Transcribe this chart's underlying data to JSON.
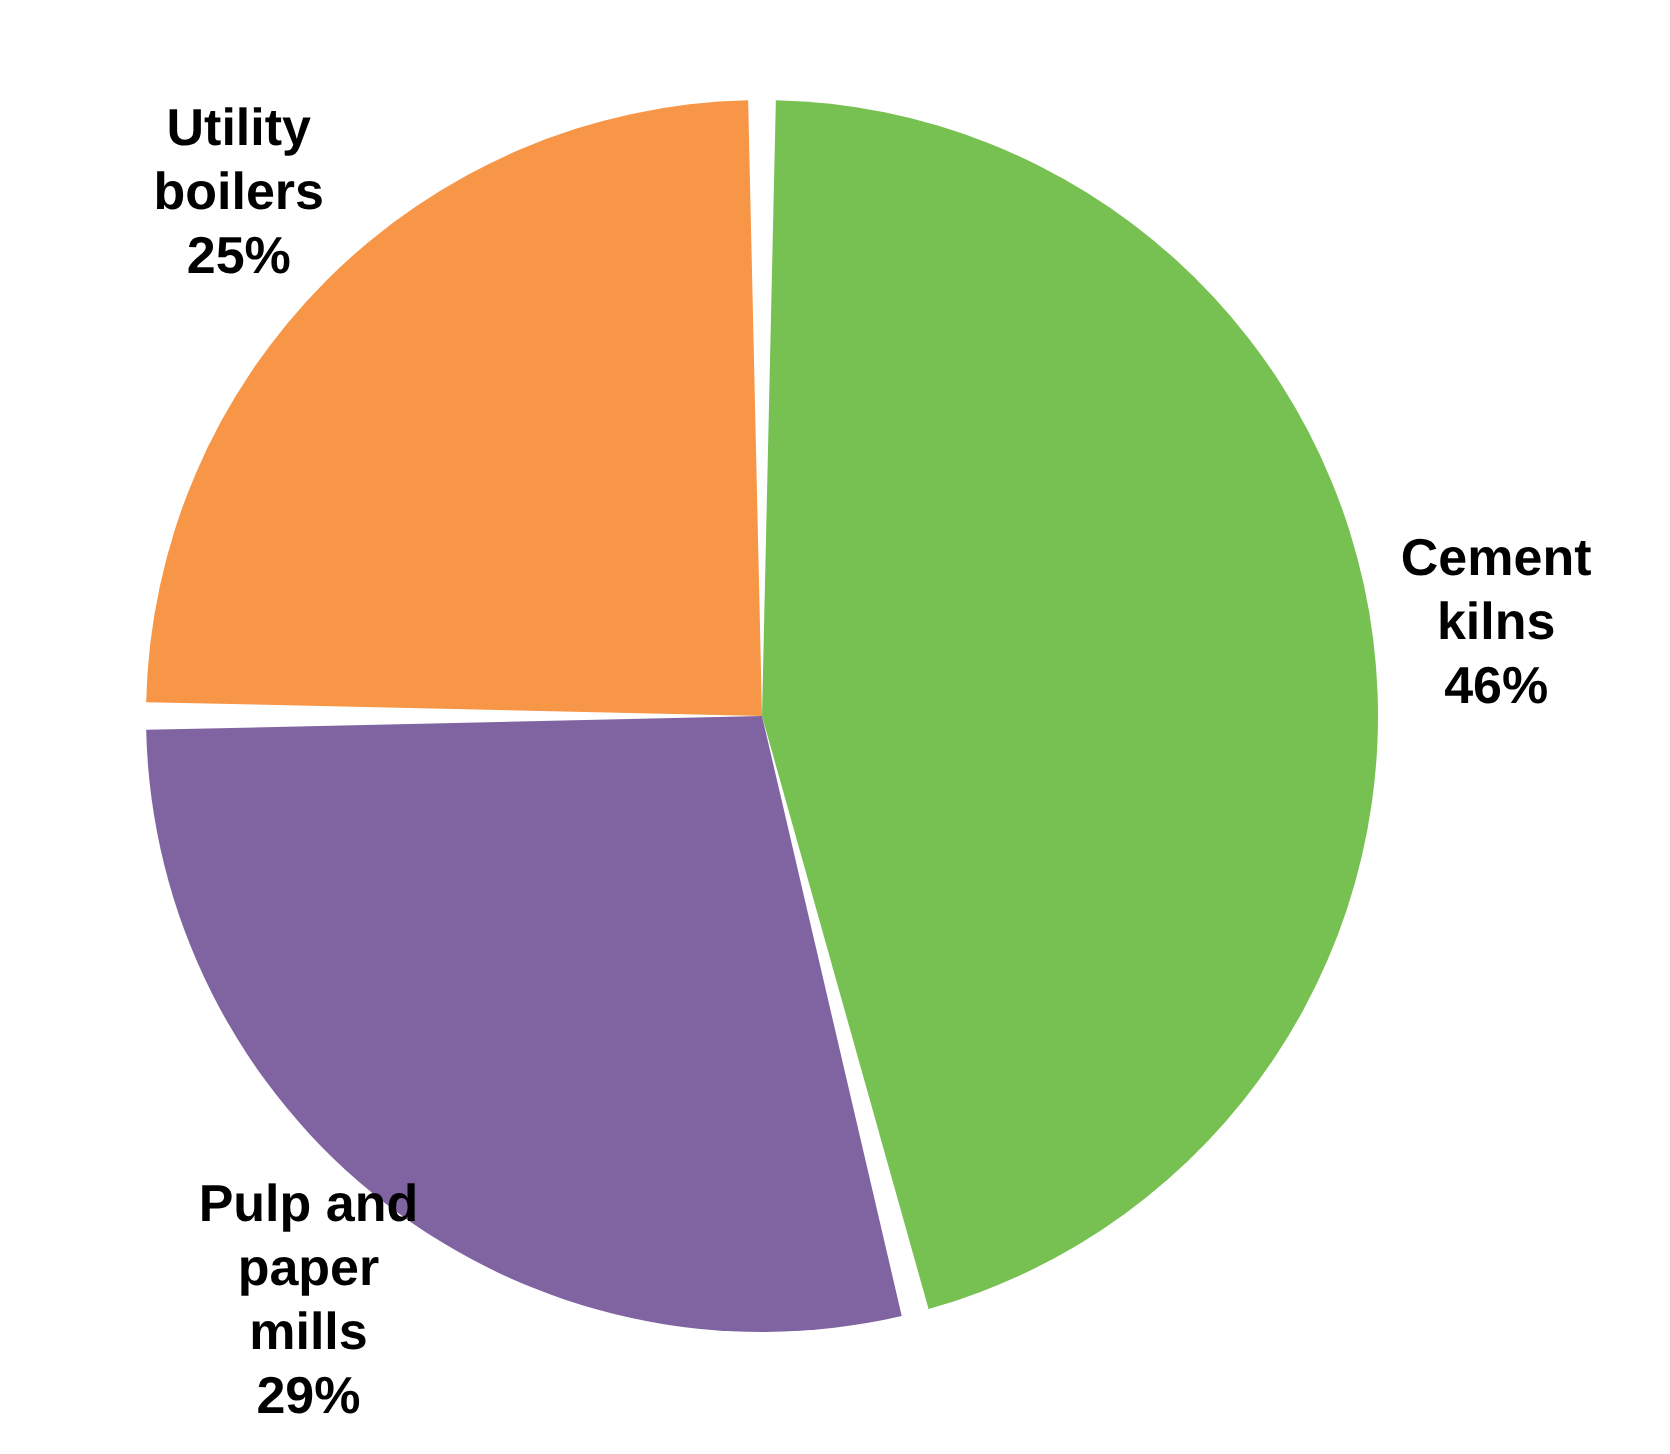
{
  "chart_data": {
    "type": "pie",
    "categories": [
      "Cement kilns",
      "Pulp and paper mills",
      "Utility boilers"
    ],
    "values": [
      46,
      29,
      25
    ],
    "colors": [
      "#77c152",
      "#8064a2",
      "#f79646"
    ],
    "value_labels": [
      "46%",
      "29%",
      "25%"
    ]
  }
}
